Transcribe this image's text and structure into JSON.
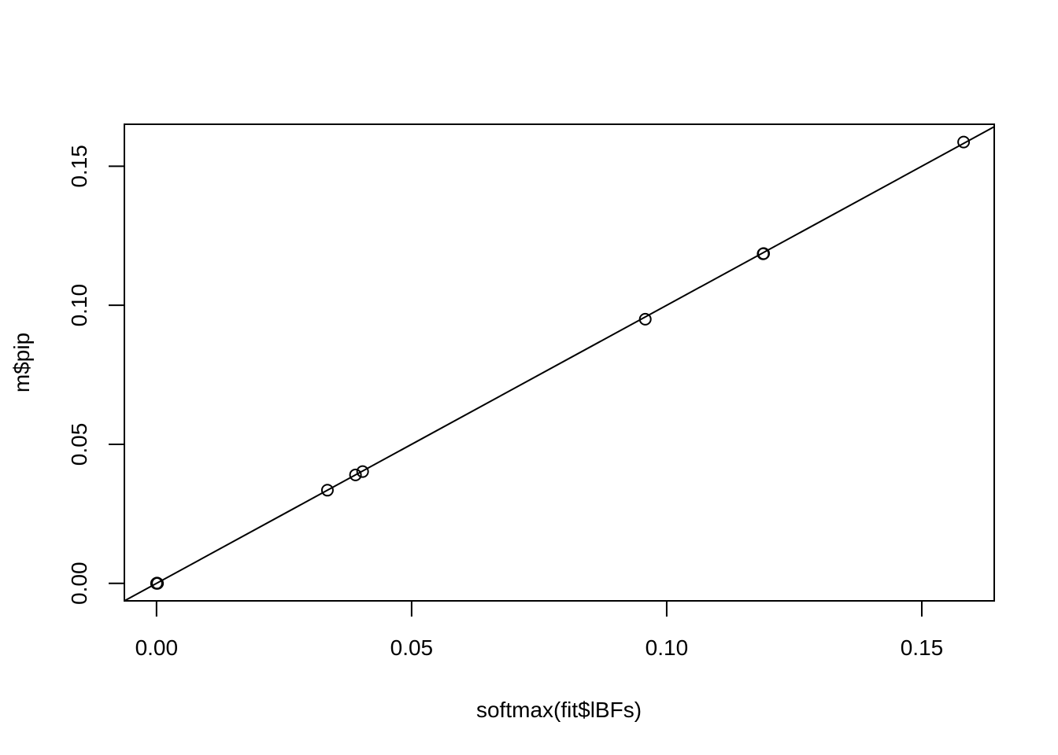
{
  "chart_data": {
    "type": "scatter",
    "title": "",
    "xlabel": "softmax(fit$lBFs)",
    "ylabel": "m$pip",
    "xlim": [
      -0.0063,
      0.1642
    ],
    "ylim": [
      -0.0063,
      0.1651
    ],
    "x_ticks": [
      0.0,
      0.05,
      0.1,
      0.15
    ],
    "x_tick_labels": [
      "0.00",
      "0.05",
      "0.10",
      "0.15"
    ],
    "y_ticks": [
      0.0,
      0.05,
      0.1,
      0.15
    ],
    "y_tick_labels": [
      "0.00",
      "0.05",
      "0.10",
      "0.15"
    ],
    "grid": false,
    "reference_line": {
      "intercept": 0,
      "slope": 1
    },
    "points": [
      {
        "x": 0.0,
        "y": 0.0
      },
      {
        "x": 0.0001,
        "y": 0.0001
      },
      {
        "x": 0.0002,
        "y": 0.0
      },
      {
        "x": 0.0335,
        "y": 0.0335
      },
      {
        "x": 0.039,
        "y": 0.039
      },
      {
        "x": 0.0404,
        "y": 0.0402
      },
      {
        "x": 0.0958,
        "y": 0.095
      },
      {
        "x": 0.1189,
        "y": 0.1185
      },
      {
        "x": 0.119,
        "y": 0.1186
      },
      {
        "x": 0.1582,
        "y": 0.1587
      }
    ],
    "colors": {
      "ink": "#000000",
      "background": "#ffffff"
    }
  }
}
